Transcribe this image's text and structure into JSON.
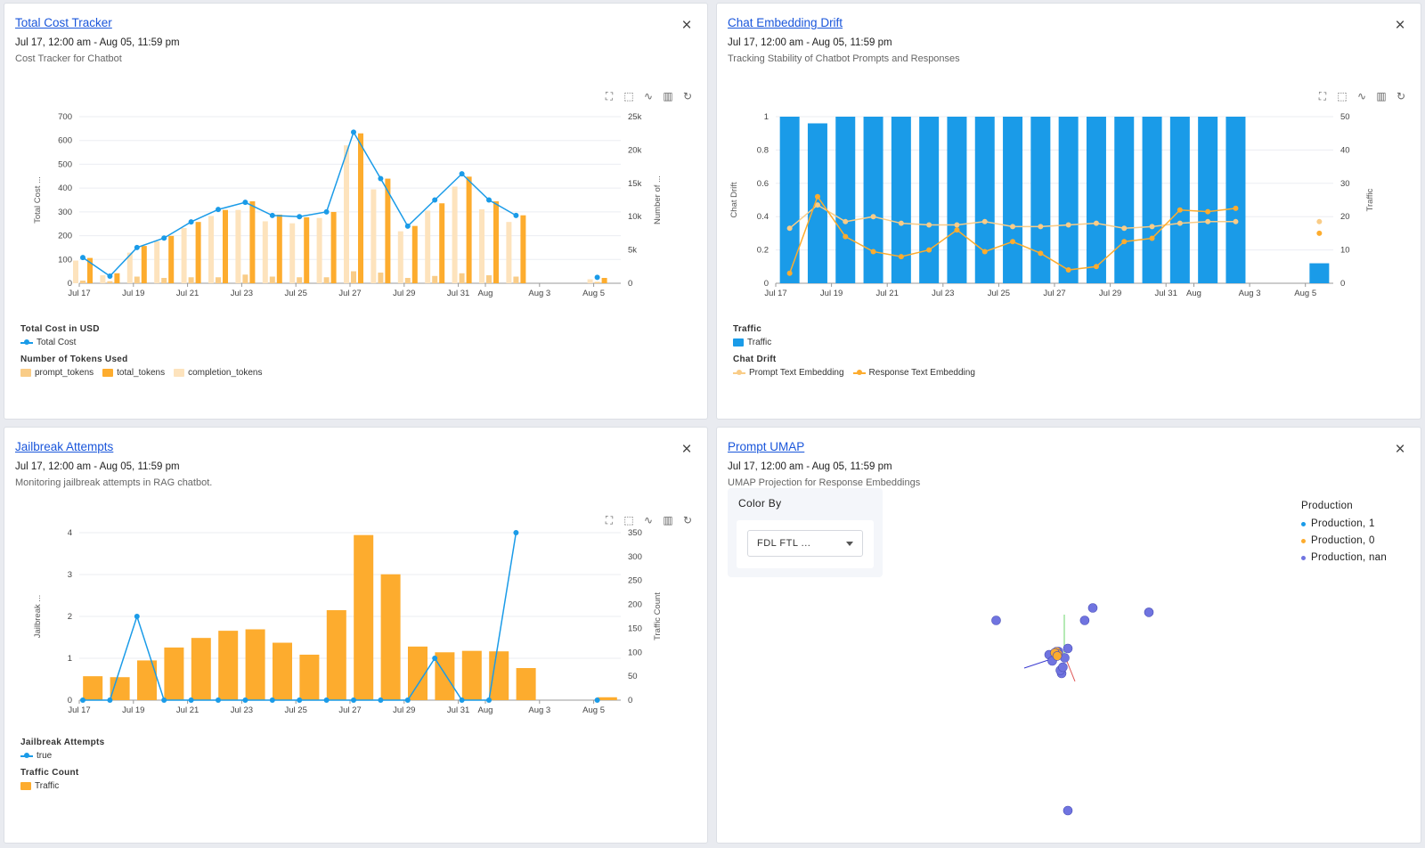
{
  "cards": {
    "cost": {
      "title": "Total Cost Tracker",
      "date_range": "Jul 17, 12:00 am - Aug 05, 11:59 pm",
      "subtitle": "Cost Tracker for Chatbot",
      "close": "×"
    },
    "drift": {
      "title": "Chat Embedding Drift",
      "date_range": "Jul 17, 12:00 am - Aug 05, 11:59 pm",
      "subtitle": "Tracking Stability of Chatbot Prompts and Responses",
      "close": "×"
    },
    "jail": {
      "title": "Jailbreak Attempts",
      "date_range": "Jul 17, 12:00 am - Aug 05, 11:59 pm",
      "subtitle": "Monitoring jailbreak attempts in RAG chatbot.",
      "close": "×"
    },
    "umap": {
      "title": "Prompt UMAP",
      "date_range": "Jul 17, 12:00 am - Aug 05, 11:59 pm",
      "subtitle": "UMAP Projection for Response Embeddings",
      "close": "×"
    }
  },
  "toolbar_icons": [
    "zoom-select-icon",
    "zoom-reset-icon",
    "line-chart-icon",
    "bar-chart-icon",
    "refresh-icon"
  ],
  "toolbar_glyphs": [
    "⛶",
    "⬚",
    "∿",
    "▥",
    "↻"
  ],
  "colors": {
    "blue": "#1a9be8",
    "orange": "#fdac2e",
    "light_orange": "#fde3bd",
    "pale_orange": "#f9cc87",
    "purple": "#7074e0",
    "link": "#1a56db"
  },
  "chart_data": [
    {
      "id": "cost",
      "type": "bar+line",
      "categories": [
        "Jul 17",
        "Jul 18",
        "Jul 19",
        "Jul 20",
        "Jul 21",
        "Jul 22",
        "Jul 23",
        "Jul 24",
        "Jul 25",
        "Jul 26",
        "Jul 27",
        "Jul 28",
        "Jul 29",
        "Jul 30",
        "Jul 31",
        "Aug 1",
        "Aug 2",
        "Aug 3",
        "Aug 4",
        "Aug 5"
      ],
      "tick_labels": [
        "Jul 17",
        "Jul 19",
        "Jul 21",
        "Jul 23",
        "Jul 25",
        "Jul 27",
        "Jul 29",
        "Jul 31",
        "Aug",
        "Aug 3",
        "Aug 5"
      ],
      "tick_index": [
        0,
        2,
        4,
        6,
        8,
        10,
        12,
        14,
        15,
        17,
        19
      ],
      "left_axis": {
        "label": "Total Cost ...",
        "ticks": [
          "0",
          "100",
          "200",
          "300",
          "400",
          "500",
          "600",
          "700"
        ],
        "max": 700
      },
      "right_axis": {
        "label": "Number of ...",
        "ticks": [
          "0",
          "5k",
          "10k",
          "15k",
          "20k",
          "25k"
        ],
        "max": 25000
      },
      "line": {
        "name": "Total Cost",
        "values": [
          108,
          30,
          150,
          190,
          258,
          310,
          340,
          285,
          280,
          300,
          635,
          440,
          240,
          350,
          460,
          350,
          285,
          null,
          null,
          25
        ]
      },
      "bars": [
        {
          "name": "prompt_tokens",
          "values": [
            400,
            300,
            1000,
            800,
            900,
            900,
            1300,
            1000,
            900,
            900,
            1800,
            1600,
            800,
            1100,
            1500,
            1200,
            1000,
            null,
            null,
            200
          ]
        },
        {
          "name": "total_tokens",
          "values": [
            3800,
            1500,
            5600,
            7100,
            9200,
            11000,
            12300,
            10300,
            9900,
            10700,
            22500,
            15700,
            8600,
            12000,
            16000,
            12300,
            10200,
            null,
            null,
            800
          ]
        },
        {
          "name": "completion_tokens",
          "values": [
            3400,
            1200,
            4600,
            6300,
            8300,
            10100,
            11000,
            9300,
            9000,
            9800,
            20700,
            14100,
            7800,
            10900,
            14500,
            11100,
            9200,
            null,
            null,
            600
          ]
        }
      ],
      "legend": {
        "group1_title": "Total Cost in USD",
        "group1_items": [
          "Total Cost"
        ],
        "group2_title": "Number of Tokens Used",
        "group2_items": [
          "prompt_tokens",
          "total_tokens",
          "completion_tokens"
        ]
      }
    },
    {
      "id": "drift",
      "type": "bar+line",
      "categories": [
        "Jul 17",
        "Jul 18",
        "Jul 19",
        "Jul 20",
        "Jul 21",
        "Jul 22",
        "Jul 23",
        "Jul 24",
        "Jul 25",
        "Jul 26",
        "Jul 27",
        "Jul 28",
        "Jul 29",
        "Jul 30",
        "Jul 31",
        "Aug 1",
        "Aug 2",
        "Aug 3",
        "Aug 4",
        "Aug 5"
      ],
      "tick_labels": [
        "Jul 17",
        "Jul 19",
        "Jul 21",
        "Jul 23",
        "Jul 25",
        "Jul 27",
        "Jul 29",
        "Jul 31",
        "Aug",
        "Aug 3",
        "Aug 5"
      ],
      "tick_index": [
        0,
        2,
        4,
        6,
        8,
        10,
        12,
        14,
        15,
        17,
        19
      ],
      "left_axis": {
        "label": "Chat Drift",
        "ticks": [
          "0",
          "0.2",
          "0.4",
          "0.6",
          "0.8",
          "1"
        ],
        "max": 1
      },
      "right_axis": {
        "label": "Traffic",
        "ticks": [
          "0",
          "10",
          "20",
          "30",
          "40",
          "50"
        ],
        "max": 50
      },
      "bars": [
        {
          "name": "Traffic",
          "values": [
            50,
            48,
            50,
            50,
            50,
            50,
            50,
            50,
            50,
            50,
            50,
            50,
            50,
            50,
            50,
            50,
            50,
            null,
            null,
            6
          ]
        }
      ],
      "lines": [
        {
          "name": "Prompt Text Embedding",
          "values": [
            0.33,
            0.47,
            0.37,
            0.4,
            0.36,
            0.35,
            0.35,
            0.37,
            0.34,
            0.34,
            0.35,
            0.36,
            0.33,
            0.34,
            0.36,
            0.37,
            0.37,
            null,
            null,
            0.37
          ]
        },
        {
          "name": "Response Text Embedding",
          "values": [
            0.06,
            0.52,
            0.28,
            0.19,
            0.16,
            0.2,
            0.32,
            0.19,
            0.25,
            0.18,
            0.08,
            0.1,
            0.25,
            0.27,
            0.44,
            0.43,
            0.45,
            null,
            null,
            0.3
          ]
        }
      ],
      "legend": {
        "group1_title": "Traffic",
        "group1_items": [
          "Traffic"
        ],
        "group2_title": "Chat Drift",
        "group2_items": [
          "Prompt Text Embedding",
          "Response Text Embedding"
        ]
      }
    },
    {
      "id": "jail",
      "type": "bar+line",
      "categories": [
        "Jul 17",
        "Jul 18",
        "Jul 19",
        "Jul 20",
        "Jul 21",
        "Jul 22",
        "Jul 23",
        "Jul 24",
        "Jul 25",
        "Jul 26",
        "Jul 27",
        "Jul 28",
        "Jul 29",
        "Jul 30",
        "Jul 31",
        "Aug 1",
        "Aug 2",
        "Aug 3",
        "Aug 4",
        "Aug 5"
      ],
      "tick_labels": [
        "Jul 17",
        "Jul 19",
        "Jul 21",
        "Jul 23",
        "Jul 25",
        "Jul 27",
        "Jul 29",
        "Jul 31",
        "Aug",
        "Aug 3",
        "Aug 5"
      ],
      "tick_index": [
        0,
        2,
        4,
        6,
        8,
        10,
        12,
        14,
        15,
        17,
        19
      ],
      "left_axis": {
        "label": "Jailbreak ...",
        "ticks": [
          "0",
          "1",
          "2",
          "3",
          "4"
        ],
        "max": 4
      },
      "right_axis": {
        "label": "Traffic Count",
        "ticks": [
          "0",
          "50",
          "100",
          "150",
          "200",
          "250",
          "300",
          "350"
        ],
        "max": 350
      },
      "bars": [
        {
          "name": "Traffic",
          "values": [
            50,
            48,
            83,
            110,
            130,
            145,
            148,
            120,
            95,
            188,
            345,
            263,
            112,
            100,
            103,
            102,
            67,
            null,
            null,
            6
          ]
        }
      ],
      "line": {
        "name": "true",
        "values": [
          0,
          0,
          2,
          0,
          0,
          0,
          0,
          0,
          0,
          0,
          0,
          0,
          0,
          1,
          0,
          0,
          4,
          null,
          null,
          0
        ]
      },
      "legend": {
        "group1_title": "Jailbreak Attempts",
        "group1_items": [
          "true"
        ],
        "group2_title": "Traffic Count",
        "group2_items": [
          "Traffic"
        ]
      }
    },
    {
      "id": "umap",
      "type": "scatter",
      "series": [
        {
          "name": "Production, 1",
          "points": []
        },
        {
          "name": "Production, 0",
          "points": [
            [
              0.02,
              0.05
            ],
            [
              0.04,
              0.01
            ],
            [
              -0.01,
              0.03
            ],
            [
              0.03,
              -0.02
            ]
          ]
        },
        {
          "name": "Production, nan",
          "points": [
            [
              0.6,
              0.75
            ],
            [
              -0.95,
              0.55
            ],
            [
              0.47,
              0.55
            ],
            [
              1.5,
              0.68
            ],
            [
              -0.1,
              0.0
            ],
            [
              0.1,
              -0.3
            ],
            [
              0.08,
              -0.25
            ],
            [
              0.05,
              0.05
            ],
            [
              0.2,
              0.1
            ],
            [
              0.15,
              -0.05
            ],
            [
              -0.05,
              -0.1
            ],
            [
              0.12,
              -0.2
            ],
            [
              0.2,
              -2.5
            ]
          ]
        }
      ]
    }
  ],
  "umap_controls": {
    "color_by_label": "Color By",
    "select_value": "FDL FTL ...",
    "legend_title": "Production",
    "legend_items": [
      "Production, 1",
      "Production, 0",
      "Production, nan"
    ]
  }
}
